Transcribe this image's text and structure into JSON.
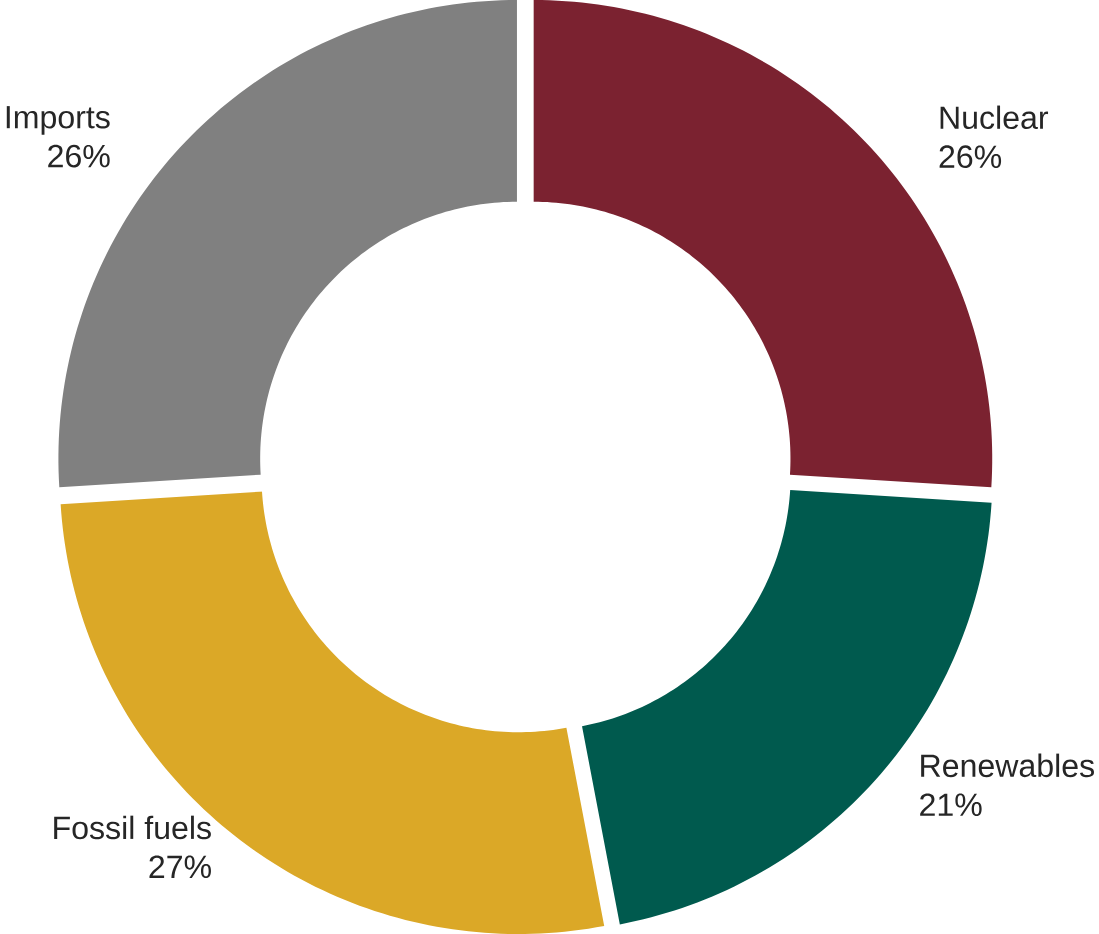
{
  "chart_data": {
    "type": "donut",
    "categories": [
      "Nuclear",
      "Renewables",
      "Fossil fuels",
      "Imports"
    ],
    "values": [
      26,
      21,
      27,
      26
    ],
    "colors": [
      "#7b2230",
      "#005a4e",
      "#dba827",
      "#808080"
    ],
    "value_labels": [
      "26%",
      "21%",
      "27%",
      "26%"
    ]
  }
}
